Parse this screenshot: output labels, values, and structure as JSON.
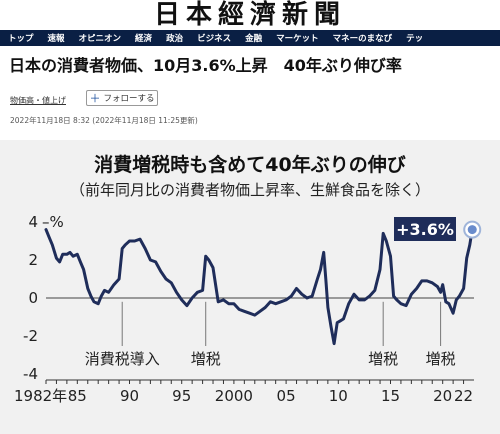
{
  "masthead": {
    "logo_text": "日本經濟新聞"
  },
  "nav": {
    "items": [
      "トップ",
      "速報",
      "オピニオン",
      "経済",
      "政治",
      "ビジネス",
      "金融",
      "マーケット",
      "マネーのまなび",
      "テッ"
    ]
  },
  "article": {
    "headline": "日本の消費者物価、10月3.6%上昇　40年ぶり伸び率",
    "tag": "物価高・値上げ",
    "follow_label": "フォローする",
    "date": "2022年11月18日 8:32 (2022年11月18日 11:25更新)"
  },
  "chart_data": {
    "type": "line",
    "title": "消費増税時も含めて40年ぶりの伸び",
    "subtitle": "（前年同月比の消費者物価上昇率、生鮮食品を除く）",
    "ylabel": "%",
    "ylim": [
      -4,
      4
    ],
    "xlim": [
      1982,
      2023
    ],
    "y_ticks": [
      "4",
      "2",
      "0",
      "-2",
      "-4"
    ],
    "x_ticks": [
      {
        "year": 1982,
        "label": "1982年"
      },
      {
        "year": 1985,
        "label": "85"
      },
      {
        "year": 1990,
        "label": "90"
      },
      {
        "year": 1995,
        "label": "95"
      },
      {
        "year": 2000,
        "label": "2000"
      },
      {
        "year": 2005,
        "label": "05"
      },
      {
        "year": 2010,
        "label": "10"
      },
      {
        "year": 2015,
        "label": "15"
      },
      {
        "year": 2020,
        "label": "20"
      },
      {
        "year": 2022,
        "label": "22"
      }
    ],
    "annotations": [
      {
        "year": 1989.3,
        "label": "消費税導入"
      },
      {
        "year": 1997.3,
        "label": "増税"
      },
      {
        "year": 2014.3,
        "label": "増税"
      },
      {
        "year": 2019.8,
        "label": "増税"
      }
    ],
    "latest_label": "+3.6%",
    "latest_value": 3.6,
    "line_color": "#1f2d5a",
    "x": [
      1982.0,
      1982.3,
      1982.6,
      1983.0,
      1983.3,
      1983.6,
      1984.0,
      1984.3,
      1984.6,
      1985.0,
      1985.3,
      1985.6,
      1986.0,
      1986.3,
      1986.6,
      1987.0,
      1987.3,
      1987.6,
      1988.0,
      1988.5,
      1989.0,
      1989.3,
      1989.6,
      1990.0,
      1990.5,
      1991.0,
      1991.5,
      1992.0,
      1992.5,
      1993.0,
      1993.5,
      1994.0,
      1994.5,
      1995.0,
      1995.5,
      1996.0,
      1996.5,
      1997.0,
      1997.3,
      1997.6,
      1998.0,
      1998.5,
      1999.0,
      1999.5,
      2000.0,
      2000.5,
      2001.0,
      2001.5,
      2002.0,
      2002.5,
      2003.0,
      2003.5,
      2004.0,
      2004.5,
      2005.0,
      2005.5,
      2006.0,
      2006.5,
      2007.0,
      2007.5,
      2008.0,
      2008.3,
      2008.6,
      2008.8,
      2009.0,
      2009.3,
      2009.6,
      2009.9,
      2010.2,
      2010.5,
      2011.0,
      2011.5,
      2012.0,
      2012.5,
      2013.0,
      2013.5,
      2014.0,
      2014.3,
      2014.6,
      2015.0,
      2015.3,
      2015.6,
      2016.0,
      2016.5,
      2017.0,
      2017.5,
      2018.0,
      2018.5,
      2019.0,
      2019.5,
      2019.8,
      2020.0,
      2020.3,
      2020.6,
      2021.0,
      2021.3,
      2021.6,
      2022.0,
      2022.3,
      2022.6,
      2022.83
    ],
    "values": [
      3.6,
      3.2,
      2.8,
      2.1,
      1.9,
      2.3,
      2.3,
      2.4,
      2.2,
      2.3,
      1.9,
      1.5,
      0.5,
      0.1,
      -0.2,
      -0.3,
      0.1,
      0.4,
      0.3,
      0.7,
      1.0,
      2.6,
      2.8,
      3.0,
      3.0,
      3.1,
      2.6,
      2.0,
      1.9,
      1.4,
      1.0,
      0.8,
      0.3,
      -0.1,
      -0.4,
      0.0,
      0.3,
      0.4,
      2.2,
      2.0,
      1.6,
      -0.2,
      -0.1,
      -0.3,
      -0.3,
      -0.6,
      -0.7,
      -0.8,
      -0.9,
      -0.7,
      -0.5,
      -0.2,
      -0.3,
      -0.2,
      -0.1,
      0.1,
      0.5,
      0.2,
      0.0,
      0.1,
      1.0,
      1.5,
      2.4,
      1.0,
      -0.5,
      -1.5,
      -2.4,
      -1.3,
      -1.2,
      -1.1,
      -0.3,
      0.2,
      -0.1,
      -0.1,
      0.1,
      0.4,
      1.5,
      3.4,
      3.0,
      2.2,
      0.1,
      -0.1,
      -0.3,
      -0.4,
      0.2,
      0.5,
      0.9,
      0.9,
      0.8,
      0.6,
      0.3,
      0.7,
      -0.2,
      -0.3,
      -0.8,
      -0.1,
      0.1,
      0.5,
      2.1,
      2.8,
      3.6
    ]
  }
}
